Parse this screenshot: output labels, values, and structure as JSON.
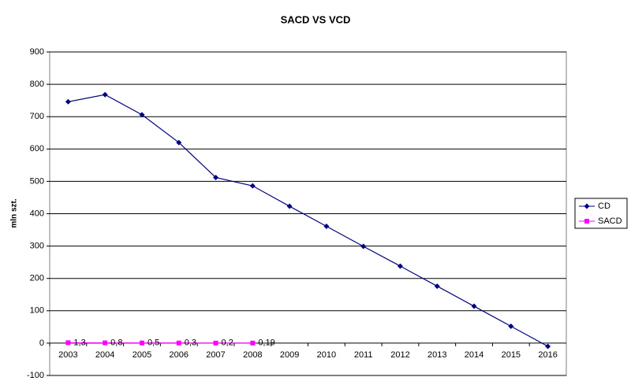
{
  "chart_data": {
    "type": "line",
    "title": "SACD VS VCD",
    "y_label": "mln szt.",
    "categories": [
      "2003",
      "2004",
      "2005",
      "2006",
      "2007",
      "2008",
      "2009",
      "2010",
      "2011",
      "2012",
      "2013",
      "2014",
      "2015",
      "2016"
    ],
    "series": [
      {
        "name": "CD",
        "color": "#000080",
        "values": [
          746,
          768,
          706,
          620,
          512,
          486,
          423,
          361,
          299,
          238,
          176,
          114,
          52,
          -10
        ]
      },
      {
        "name": "SACD",
        "color": "#ff00ff",
        "values": [
          1.3,
          0.8,
          0.5,
          0.3,
          0.2,
          0.19,
          null,
          null,
          null,
          null,
          null,
          null,
          null,
          null
        ],
        "value_labels": [
          "1,3",
          "0,8",
          "0,5",
          "0,3",
          "0,2",
          "0,19",
          null,
          null,
          null,
          null,
          null,
          null,
          null,
          null
        ]
      }
    ],
    "ylim": [
      -100,
      900
    ],
    "yticks": [
      -100,
      0,
      100,
      200,
      300,
      400,
      500,
      600,
      700,
      800,
      900
    ],
    "grid": true,
    "legend": "right"
  }
}
